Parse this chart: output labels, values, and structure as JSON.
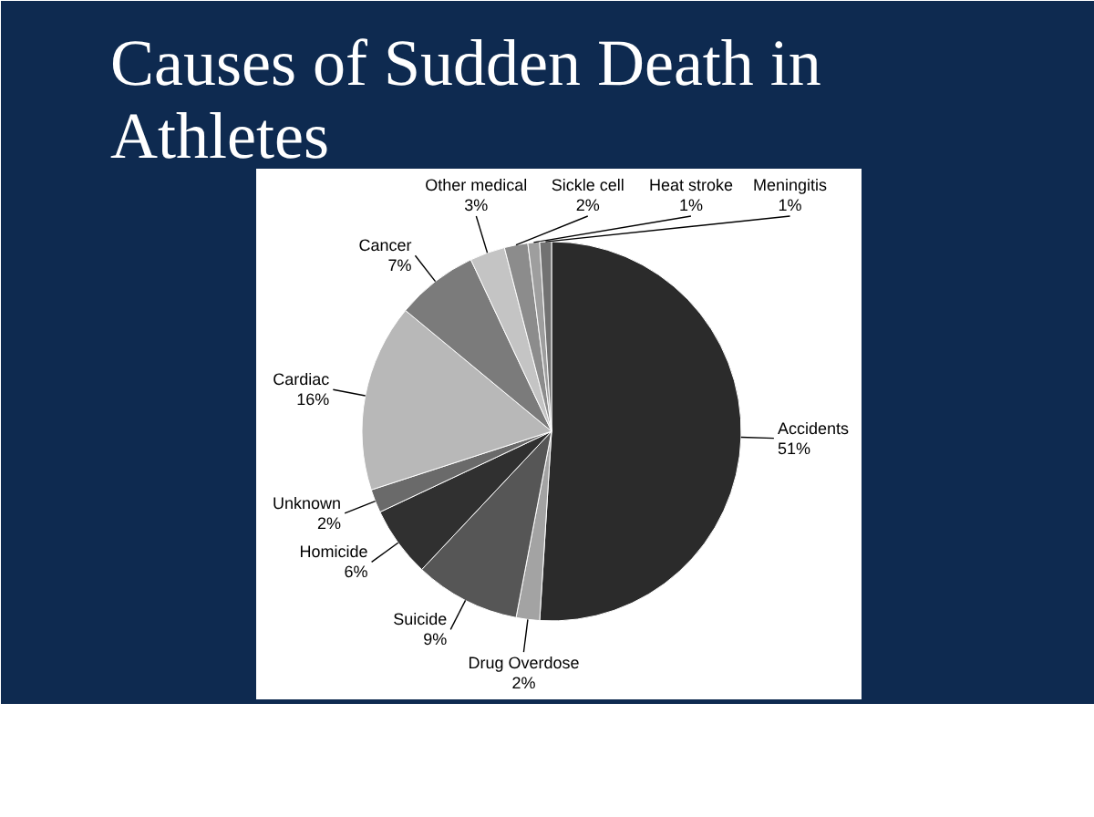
{
  "chart_data": {
    "type": "pie",
    "title": "Causes of Sudden Death in Athletes",
    "categories": [
      "Accidents",
      "Drug Overdose",
      "Suicide",
      "Homicide",
      "Unknown",
      "Cardiac",
      "Cancer",
      "Other medical",
      "Sickle cell",
      "Heat stroke",
      "Meningitis"
    ],
    "values": [
      51,
      2,
      9,
      6,
      2,
      16,
      7,
      3,
      2,
      1,
      1
    ],
    "colors": [
      "#2b2b2b",
      "#a3a3a3",
      "#565656",
      "#303030",
      "#6a6a6a",
      "#b8b8b8",
      "#7b7b7b",
      "#c4c4c4",
      "#8c8c8c",
      "#9e9e9e",
      "#727272"
    ],
    "value_labels": [
      "51%",
      "2%",
      "9%",
      "6%",
      "2%",
      "16%",
      "7%",
      "3%",
      "2%",
      "1%",
      "1%"
    ]
  }
}
